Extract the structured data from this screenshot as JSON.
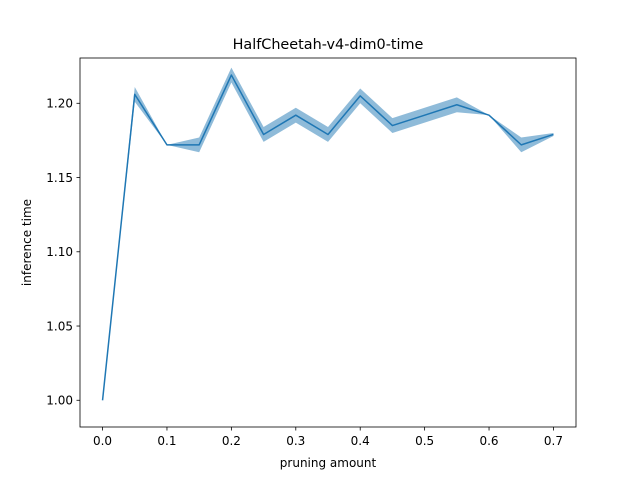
{
  "chart_data": {
    "type": "line",
    "title": "HalfCheetah-v4-dim0-time",
    "xlabel": "pruning amount",
    "ylabel": "inference time",
    "xlim": [
      -0.035,
      0.735
    ],
    "ylim": [
      0.982,
      1.2305
    ],
    "xticks": [
      0.0,
      0.1,
      0.2,
      0.3,
      0.4,
      0.5,
      0.6,
      0.7
    ],
    "xtick_labels": [
      "0.0",
      "0.1",
      "0.2",
      "0.3",
      "0.4",
      "0.5",
      "0.6",
      "0.7"
    ],
    "yticks": [
      1.0,
      1.05,
      1.1,
      1.15,
      1.2
    ],
    "ytick_labels": [
      "1.00",
      "1.05",
      "1.10",
      "1.15",
      "1.20"
    ],
    "grid": false,
    "legend": "none",
    "colors": {
      "line": "#1f77b4",
      "band": "#1f77b4"
    },
    "series": [
      {
        "x": [
          0.0,
          0.05,
          0.1,
          0.15,
          0.2,
          0.25,
          0.3,
          0.35,
          0.4,
          0.45,
          0.5,
          0.55,
          0.6,
          0.65,
          0.7
        ],
        "values": [
          1.0,
          1.206,
          1.172,
          1.172,
          1.219,
          1.179,
          1.192,
          1.179,
          1.205,
          1.185,
          1.192,
          1.199,
          1.192,
          1.172,
          1.179
        ],
        "lower": [
          1.0,
          1.201,
          1.172,
          1.167,
          1.214,
          1.174,
          1.187,
          1.174,
          1.2,
          1.18,
          1.187,
          1.194,
          1.192,
          1.167,
          1.178
        ],
        "upper": [
          1.0,
          1.211,
          1.172,
          1.177,
          1.224,
          1.184,
          1.197,
          1.184,
          1.21,
          1.19,
          1.197,
          1.204,
          1.192,
          1.177,
          1.18
        ]
      }
    ]
  }
}
